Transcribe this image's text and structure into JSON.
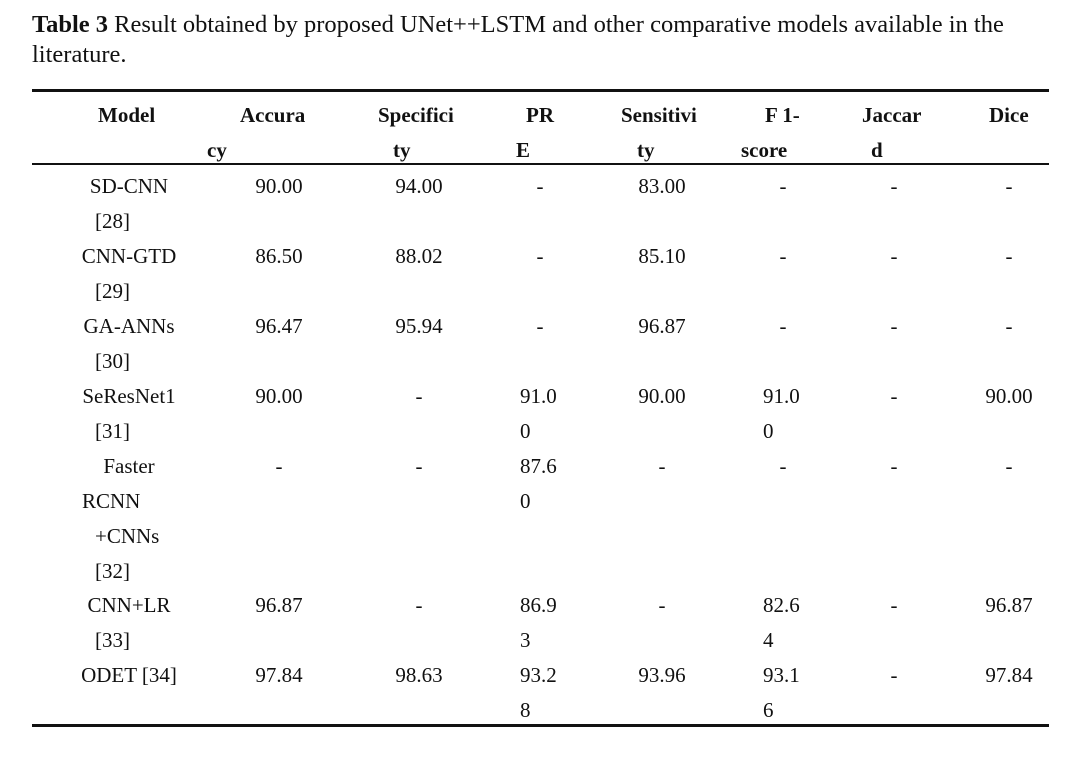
{
  "caption": {
    "label": "Table 3",
    "text": " Result obtained by proposed UNet++LSTM and other comparative models available in the literature."
  },
  "headers": {
    "model": "Model",
    "accuracy_1": "Accura",
    "accuracy_2": "cy",
    "specificity_1": "Specifici",
    "specificity_2": "ty",
    "pre_1": "PR",
    "pre_2": "E",
    "sensitivity_1": "Sensitivi",
    "sensitivity_2": "ty",
    "f1_1": "F 1-",
    "f1_2": "score",
    "jaccard_1": "Jaccar",
    "jaccard_2": "d",
    "dice": "Dice"
  },
  "rows": [
    {
      "model": [
        "SD-CNN",
        "[28]"
      ],
      "accuracy": "90.00",
      "specificity": "94.00",
      "pre": [
        "-"
      ],
      "sensitivity": "83.00",
      "f1": [
        "-"
      ],
      "jaccard": "-",
      "dice": "-"
    },
    {
      "model": [
        "CNN-GTD",
        "[29]"
      ],
      "accuracy": "86.50",
      "specificity": "88.02",
      "pre": [
        "-"
      ],
      "sensitivity": "85.10",
      "f1": [
        "-"
      ],
      "jaccard": "-",
      "dice": "-"
    },
    {
      "model": [
        "GA-ANNs",
        "[30]"
      ],
      "accuracy": "96.47",
      "specificity": "95.94",
      "pre": [
        "-"
      ],
      "sensitivity": "96.87",
      "f1": [
        "-"
      ],
      "jaccard": "-",
      "dice": "-"
    },
    {
      "model": [
        "SeResNet1",
        "[31]"
      ],
      "accuracy": "90.00",
      "specificity": "-",
      "pre": [
        "91.0",
        "0"
      ],
      "sensitivity": "90.00",
      "f1": [
        "91.0",
        "0"
      ],
      "jaccard": "-",
      "dice": "90.00"
    },
    {
      "model": [
        "Faster",
        "RCNN",
        "+CNNs",
        "[32]"
      ],
      "accuracy": "-",
      "specificity": "-",
      "pre": [
        "87.6",
        "0"
      ],
      "sensitivity": "-",
      "f1": [
        "-"
      ],
      "jaccard": "-",
      "dice": "-"
    },
    {
      "model": [
        "CNN+LR",
        "[33]"
      ],
      "accuracy": "96.87",
      "specificity": "-",
      "pre": [
        "86.9",
        "3"
      ],
      "sensitivity": "-",
      "f1": [
        "82.6",
        "4"
      ],
      "jaccard": "-",
      "dice": "96.87"
    },
    {
      "model": [
        "ODET [34]"
      ],
      "accuracy": "97.84",
      "specificity": "98.63",
      "pre": [
        "93.2",
        "8"
      ],
      "sensitivity": "93.96",
      "f1": [
        "93.1",
        "6"
      ],
      "jaccard": "-",
      "dice": "97.84"
    }
  ]
}
